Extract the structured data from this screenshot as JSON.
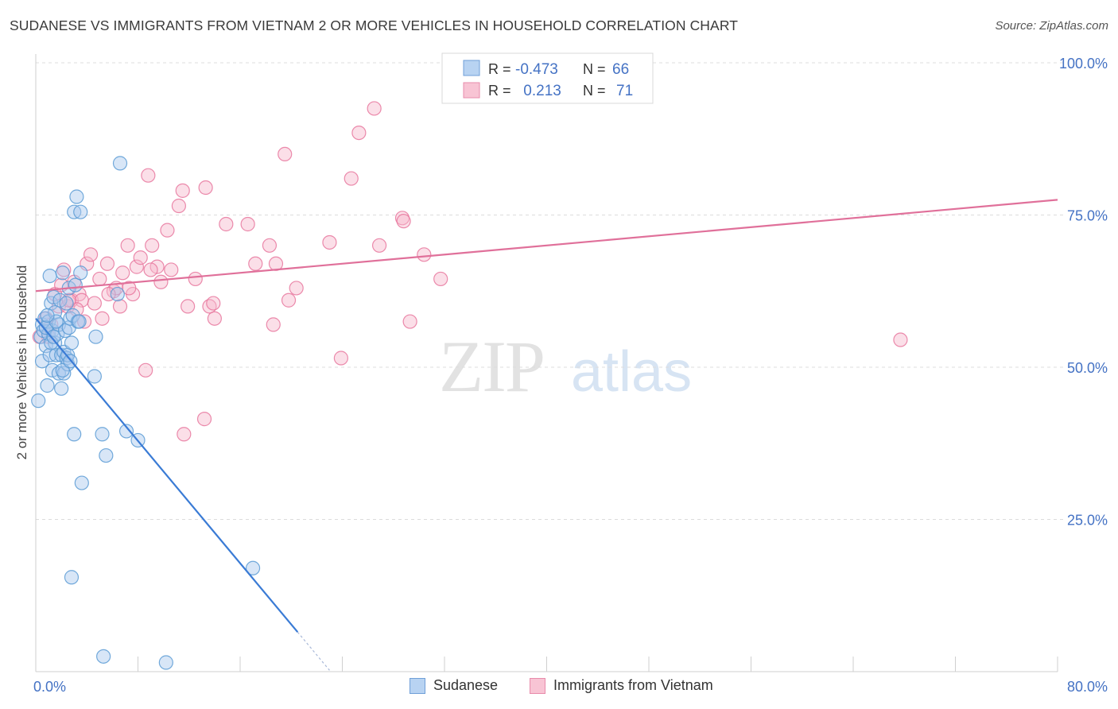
{
  "title": "SUDANESE VS IMMIGRANTS FROM VIETNAM 2 OR MORE VEHICLES IN HOUSEHOLD CORRELATION CHART",
  "source": "Source: ZipAtlas.com",
  "watermark": {
    "zip": "ZIP",
    "atlas": "atlas"
  },
  "colors": {
    "blue": "#5b9bd5",
    "blue_line": "#3a7bd5",
    "blue_fill": "#a9c8ee",
    "pink": "#e8779e",
    "pink_line": "#e0709a",
    "pink_fill": "#f7b8cb",
    "tick_label": "#4472c4",
    "grid": "#dcdcdc"
  },
  "legend_top": {
    "rows": [
      {
        "r_label": "R = ",
        "r_value": "-0.473",
        "n_label": "N = ",
        "n_value": "66"
      },
      {
        "r_label": "R = ",
        "r_value": " 0.213",
        "n_label": "N = ",
        "n_value": "71"
      }
    ]
  },
  "legend_bottom": {
    "series1": "Sudanese",
    "series2": "Immigrants from Vietnam"
  },
  "chart_data": {
    "type": "scatter",
    "xlabel": "",
    "ylabel": "2 or more Vehicles in Household",
    "xlim": [
      0,
      80
    ],
    "ylim": [
      0,
      100
    ],
    "x_tick_labels": [
      "0.0%",
      "80.0%"
    ],
    "y_tick_labels": [
      "100.0%",
      "75.0%",
      "50.0%",
      "25.0%"
    ],
    "y_ticks": [
      100,
      75,
      50,
      25
    ],
    "grid": "horizontal dashed",
    "legend_position": "top-center",
    "series": [
      {
        "name": "Sudanese",
        "stats": {
          "R": -0.473,
          "N": 66
        },
        "trend": {
          "x0": 0,
          "y0": 58,
          "x1": 20.5,
          "y1": 6.5,
          "dashed_to_x": 23
        },
        "points": [
          [
            0.2,
            44.5
          ],
          [
            0.4,
            55
          ],
          [
            0.5,
            57
          ],
          [
            0.5,
            51
          ],
          [
            0.6,
            56
          ],
          [
            0.7,
            58
          ],
          [
            0.8,
            53.5
          ],
          [
            0.9,
            47
          ],
          [
            1.0,
            55.5
          ],
          [
            1.0,
            57.5
          ],
          [
            1.1,
            65
          ],
          [
            1.1,
            52
          ],
          [
            1.2,
            60.5
          ],
          [
            1.3,
            49.5
          ],
          [
            1.3,
            56
          ],
          [
            1.4,
            61.5
          ],
          [
            1.5,
            59
          ],
          [
            1.5,
            54
          ],
          [
            1.6,
            52
          ],
          [
            1.7,
            55.5
          ],
          [
            1.8,
            57
          ],
          [
            1.8,
            49
          ],
          [
            1.9,
            61
          ],
          [
            2.0,
            52
          ],
          [
            2.0,
            46.5
          ],
          [
            2.1,
            65.5
          ],
          [
            2.2,
            49
          ],
          [
            2.2,
            52.5
          ],
          [
            2.3,
            56
          ],
          [
            2.4,
            60.5
          ],
          [
            2.4,
            51.5
          ],
          [
            2.5,
            50.5
          ],
          [
            2.5,
            52
          ],
          [
            2.6,
            56.5
          ],
          [
            2.6,
            63
          ],
          [
            2.7,
            58
          ],
          [
            2.8,
            54
          ],
          [
            2.9,
            58.5
          ],
          [
            3.0,
            75.5
          ],
          [
            3.0,
            39
          ],
          [
            3.1,
            63.5
          ],
          [
            3.2,
            78
          ],
          [
            3.3,
            57.5
          ],
          [
            3.4,
            57.5
          ],
          [
            3.5,
            75.5
          ],
          [
            3.5,
            65.5
          ],
          [
            3.6,
            31
          ],
          [
            4.6,
            48.5
          ],
          [
            4.7,
            55
          ],
          [
            5.2,
            39
          ],
          [
            5.5,
            35.5
          ],
          [
            6.4,
            62
          ],
          [
            6.6,
            83.5
          ],
          [
            7.1,
            39.5
          ],
          [
            8.0,
            38
          ],
          [
            17.0,
            17
          ],
          [
            2.8,
            15.5
          ],
          [
            5.3,
            2.5
          ],
          [
            10.2,
            1.5
          ],
          [
            1.2,
            54
          ],
          [
            0.8,
            56.5
          ],
          [
            1.6,
            57.5
          ],
          [
            2.1,
            49.5
          ],
          [
            0.9,
            58.5
          ],
          [
            1.4,
            55
          ],
          [
            2.7,
            51
          ]
        ]
      },
      {
        "name": "Immigrants from Vietnam",
        "stats": {
          "R": 0.213,
          "N": 71
        },
        "trend": {
          "x0": 0,
          "y0": 62.5,
          "x1": 80,
          "y1": 77.5
        },
        "points": [
          [
            0.3,
            55
          ],
          [
            0.8,
            58
          ],
          [
            1.0,
            55
          ],
          [
            1.2,
            57
          ],
          [
            1.5,
            62
          ],
          [
            1.8,
            60
          ],
          [
            2.0,
            63.5
          ],
          [
            2.2,
            66
          ],
          [
            2.5,
            60
          ],
          [
            2.8,
            61
          ],
          [
            3.0,
            64
          ],
          [
            3.4,
            62
          ],
          [
            3.6,
            61
          ],
          [
            3.8,
            57.5
          ],
          [
            4.0,
            67
          ],
          [
            4.3,
            68.5
          ],
          [
            4.6,
            60.5
          ],
          [
            5.0,
            64.5
          ],
          [
            5.2,
            58
          ],
          [
            5.6,
            67
          ],
          [
            6.1,
            62.5
          ],
          [
            6.3,
            63
          ],
          [
            6.6,
            60
          ],
          [
            6.8,
            65.5
          ],
          [
            7.2,
            70
          ],
          [
            7.6,
            62
          ],
          [
            7.9,
            66.5
          ],
          [
            8.2,
            68
          ],
          [
            8.6,
            49.5
          ],
          [
            8.8,
            81.5
          ],
          [
            9.1,
            70
          ],
          [
            9.5,
            66.5
          ],
          [
            9.8,
            64
          ],
          [
            10.3,
            72.5
          ],
          [
            10.6,
            66
          ],
          [
            11.2,
            76.5
          ],
          [
            11.5,
            79
          ],
          [
            11.6,
            39
          ],
          [
            11.9,
            60
          ],
          [
            12.5,
            64.5
          ],
          [
            13.2,
            41.5
          ],
          [
            13.3,
            79.5
          ],
          [
            13.6,
            60
          ],
          [
            13.9,
            60.5
          ],
          [
            14.0,
            58
          ],
          [
            14.9,
            73.5
          ],
          [
            16.6,
            73.5
          ],
          [
            17.2,
            67
          ],
          [
            18.3,
            70
          ],
          [
            18.6,
            57
          ],
          [
            18.8,
            67
          ],
          [
            19.5,
            85
          ],
          [
            19.8,
            61
          ],
          [
            20.4,
            63
          ],
          [
            23.0,
            70.5
          ],
          [
            23.9,
            51.5
          ],
          [
            24.7,
            81
          ],
          [
            25.3,
            88.5
          ],
          [
            26.5,
            92.5
          ],
          [
            26.9,
            70
          ],
          [
            28.7,
            74.5
          ],
          [
            28.8,
            74
          ],
          [
            29.3,
            57.5
          ],
          [
            30.4,
            68.5
          ],
          [
            31.7,
            64.5
          ],
          [
            67.7,
            54.5
          ],
          [
            3.2,
            59.5
          ],
          [
            5.7,
            62
          ],
          [
            7.3,
            63
          ],
          [
            9.0,
            66
          ],
          [
            2.6,
            61
          ]
        ]
      }
    ]
  }
}
